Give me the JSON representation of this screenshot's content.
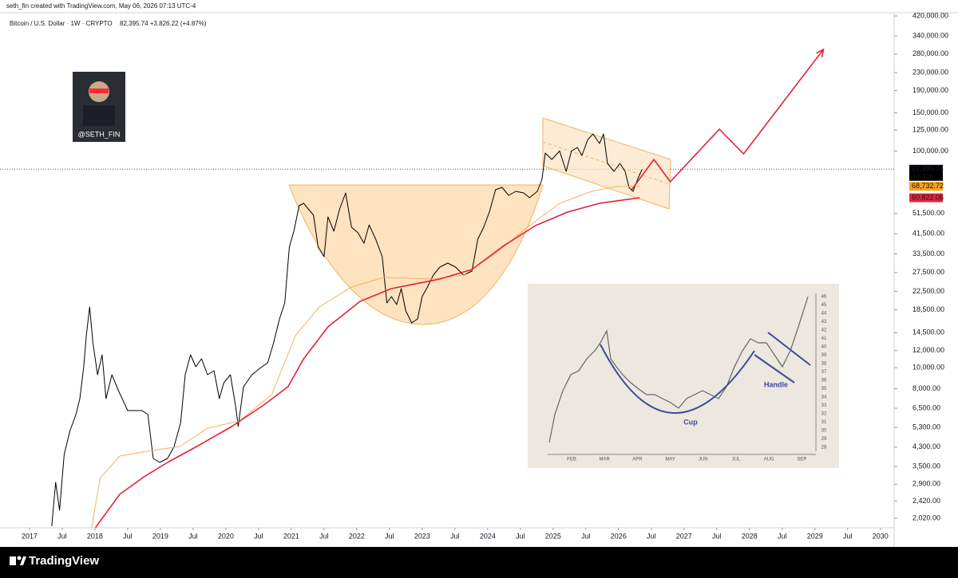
{
  "header": "seth_fin created with TradingView.com, May 06, 2026 07:13 UTC-4",
  "footer": "TradingView",
  "badge": "@SETH_FIN",
  "inset": {
    "months": [
      "FEB",
      "MAR",
      "APR",
      "MAY",
      "JUN",
      "JUL",
      "AUG",
      "SEP"
    ],
    "scale": [
      "46",
      "45",
      "44",
      "43",
      "42",
      "41",
      "40",
      "39",
      "38",
      "37",
      "36",
      "35",
      "34",
      "33",
      "32",
      "31",
      "30",
      "29",
      "28"
    ],
    "cup": "Cup",
    "handle": "Handle"
  },
  "chart_data": {
    "type": "line",
    "title": "Bitcoin / U.S. Dollar · 1W · CRYPTO",
    "quote": "82,395.74  +3,826.22 (+4.87%)",
    "log_scale": true,
    "xlim": [
      2016.55,
      2030.21
    ],
    "ylim": [
      1825,
      497600
    ],
    "xticks": [
      2017,
      {
        "value": 2017.5,
        "label": "Jul"
      },
      2018,
      {
        "value": 2018.5,
        "label": "Jul"
      },
      2019,
      {
        "value": 2019.5,
        "label": "Jul"
      },
      2020,
      {
        "value": 2020.5,
        "label": "Jul"
      },
      2021,
      {
        "value": 2021.5,
        "label": "Jul"
      },
      2022,
      {
        "value": 2022.5,
        "label": "Jul"
      },
      2023,
      {
        "value": 2023.5,
        "label": "Jul"
      },
      2024,
      {
        "value": 2024.5,
        "label": "Jul"
      },
      2025,
      {
        "value": 2025.5,
        "label": "Jul"
      },
      2026,
      {
        "value": 2026.5,
        "label": "Jul"
      },
      2027,
      {
        "value": 2027.5,
        "label": "Jul"
      },
      2028,
      {
        "value": 2028.5,
        "label": "Jul"
      },
      2029,
      {
        "value": 2029.5,
        "label": "Jul"
      },
      2030
    ],
    "yticks": [
      {
        "value": 420000,
        "label": "420,000.00"
      },
      {
        "value": 340000,
        "label": "340,000.00"
      },
      {
        "value": 280000,
        "label": "280,000.00"
      },
      {
        "value": 230000,
        "label": "230,000.00"
      },
      {
        "value": 190000,
        "label": "190,000.00"
      },
      {
        "value": 150000,
        "label": "150,000.00"
      },
      {
        "value": 125000,
        "label": "125,000.00"
      },
      {
        "value": 100000,
        "label": "100,000.00"
      },
      {
        "value": 51500,
        "label": "51,500.00"
      },
      {
        "value": 41500,
        "label": "41,500.00"
      },
      {
        "value": 33500,
        "label": "33,500.00"
      },
      {
        "value": 27500,
        "label": "27,500.00"
      },
      {
        "value": 22500,
        "label": "22,500.00"
      },
      {
        "value": 18500,
        "label": "18,500.00"
      },
      {
        "value": 14500,
        "label": "14,500.00"
      },
      {
        "value": 12000,
        "label": "12,000.00"
      },
      {
        "value": 10000,
        "label": "10,000.00"
      },
      {
        "value": 8000,
        "label": "8,000.00"
      },
      {
        "value": 6500,
        "label": "6,500.00"
      },
      {
        "value": 5300,
        "label": "5,300.00"
      },
      {
        "value": 4300,
        "label": "4,300.00"
      },
      {
        "value": 3500,
        "label": "3,500.00"
      },
      {
        "value": 2900,
        "label": "2,900.00"
      },
      {
        "value": 2420,
        "label": "2,420.00"
      },
      {
        "value": 2020,
        "label": "2,020.00"
      }
    ],
    "countdown": "4d 13h",
    "price_labels": [
      {
        "value": 82395.74,
        "label": "82,395.74",
        "color": "#000000",
        "text_color": "#ffffff"
      },
      {
        "value": 68732.72,
        "label": "68,732.72",
        "color": "#f7a21b",
        "text_color": "#000000"
      },
      {
        "value": 60822.06,
        "label": "60,822.06",
        "color": "#e5253a",
        "text_color": "#ffffff"
      }
    ],
    "series": [
      {
        "color": "#000000",
        "width": 1,
        "x": [
          2017.34,
          2017.4,
          2017.46,
          2017.53,
          2017.62,
          2017.71,
          2017.77,
          2017.83,
          2017.87,
          2017.92,
          2017.97,
          2018.04,
          2018.11,
          2018.17,
          2018.26,
          2018.36,
          2018.5,
          2018.72,
          2018.81,
          2018.89,
          2018.99,
          2019.11,
          2019.21,
          2019.31,
          2019.38,
          2019.46,
          2019.54,
          2019.63,
          2019.72,
          2019.82,
          2019.9,
          2019.97,
          2020.07,
          2020.15,
          2020.19,
          2020.27,
          2020.4,
          2020.52,
          2020.64,
          2020.73,
          2020.82,
          2020.9,
          2020.97,
          2021.04,
          2021.12,
          2021.19,
          2021.26,
          2021.34,
          2021.41,
          2021.5,
          2021.56,
          2021.65,
          2021.74,
          2021.83,
          2021.92,
          2022.02,
          2022.11,
          2022.19,
          2022.29,
          2022.39,
          2022.46,
          2022.53,
          2022.61,
          2022.68,
          2022.75,
          2022.84,
          2022.93,
          2023.0,
          2023.08,
          2023.17,
          2023.27,
          2023.39,
          2023.51,
          2023.63,
          2023.76,
          2023.85,
          2023.94,
          2024.03,
          2024.12,
          2024.22,
          2024.32,
          2024.43,
          2024.55,
          2024.64,
          2024.76,
          2024.83,
          2024.88,
          2024.98,
          2025.1,
          2025.2,
          2025.28,
          2025.37,
          2025.44,
          2025.53,
          2025.61,
          2025.71,
          2025.77,
          2025.83,
          2025.93,
          2026.02,
          2026.1,
          2026.16,
          2026.22,
          2026.29,
          2026.36
        ],
        "values": [
          1856,
          2958,
          2199,
          3979,
          5129,
          6076,
          7197,
          10100,
          14170,
          19070,
          13020,
          9282,
          11470,
          7197,
          9282,
          7834,
          6339,
          6339,
          6076,
          3814,
          3655,
          3814,
          4329,
          5582,
          9282,
          11470,
          10100,
          11000,
          9282,
          9683,
          7197,
          8528,
          9282,
          6614,
          5350,
          8174,
          9282,
          9931,
          10540,
          13020,
          16800,
          19890,
          35990,
          42640,
          55910,
          57360,
          54060,
          50520,
          35990,
          32520,
          49660,
          42640,
          54060,
          64030,
          44480,
          41930,
          37540,
          45620,
          39170,
          32520,
          19890,
          21290,
          19560,
          23170,
          18280,
          16100,
          16800,
          21290,
          23560,
          26760,
          29130,
          30380,
          29130,
          26760,
          27920,
          39170,
          44480,
          52700,
          66240,
          67950,
          62440,
          65150,
          64030,
          60860,
          65150,
          73960,
          97810,
          91400,
          100000,
          80530,
          100000,
          103800,
          95350,
          113000,
          119900,
          108300,
          119900,
          87600,
          80530,
          87600,
          80530,
          67950,
          65150,
          73960,
          82395.74
        ]
      },
      {
        "color": "#f2b366",
        "width": 1,
        "x": [
          2017.95,
          2018.08,
          2018.38,
          2018.87,
          2019.3,
          2019.72,
          2020.21,
          2020.7,
          2021.07,
          2021.43,
          2021.92,
          2022.41,
          2023.15,
          2023.63,
          2024.12,
          2024.61,
          2025.1,
          2025.59,
          2025.96,
          2026.32
        ],
        "values": [
          1830,
          3085,
          3912,
          4150,
          4329,
          5262,
          5679,
          7508,
          14170,
          19070,
          23560,
          26090,
          25660,
          26760,
          33640,
          44480,
          57360,
          65150,
          68530,
          68732.72
        ]
      },
      {
        "color": "#e0233a",
        "width": 1.6,
        "x": [
          2018.01,
          2018.38,
          2018.75,
          2019.11,
          2019.6,
          2020.09,
          2020.58,
          2020.95,
          2021.19,
          2021.56,
          2022.05,
          2022.53,
          2023.27,
          2023.76,
          2024.25,
          2024.73,
          2025.22,
          2025.71,
          2026.32
        ],
        "values": [
          1830,
          2604,
          3137,
          3655,
          4403,
          5350,
          6725,
          8174,
          11000,
          15430,
          20240,
          23170,
          25660,
          28400,
          36610,
          45240,
          52250,
          57360,
          60822.06
        ]
      },
      {
        "color": "#e0233a",
        "width": 1.6,
        "arrow": true,
        "x": [
          2026.2,
          2026.54,
          2026.79,
          2027.54,
          2027.91,
          2029.13
        ],
        "values": [
          66240,
          91400,
          72120,
          126100,
          96990,
          294200
        ]
      }
    ]
  }
}
